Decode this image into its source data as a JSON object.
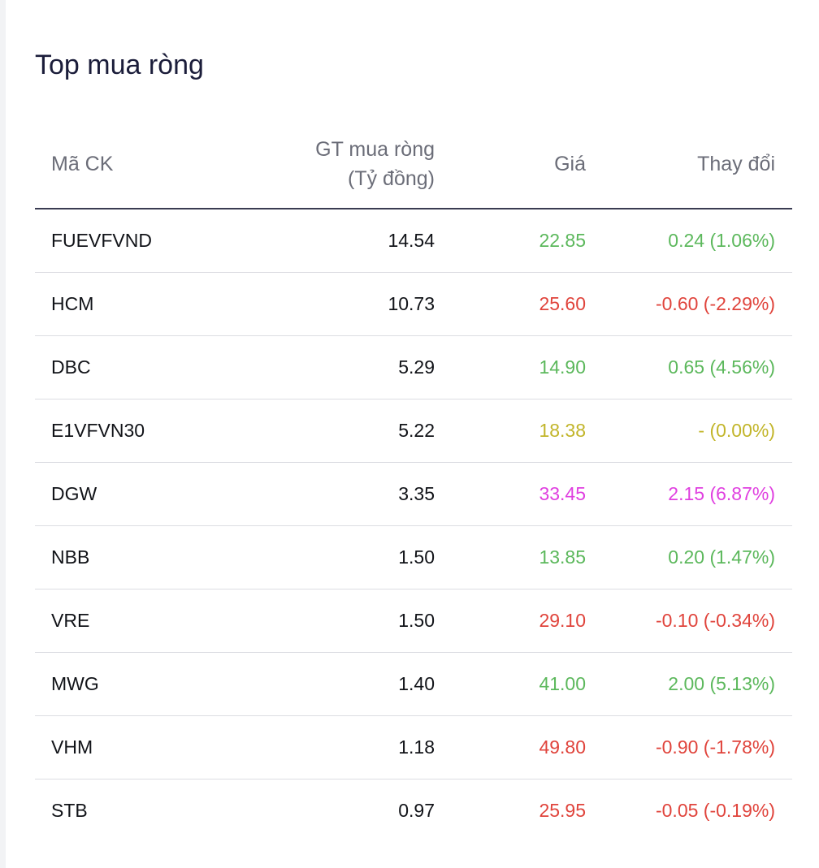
{
  "title": "Top mua ròng",
  "headers": {
    "symbol": "Mã CK",
    "net_value_line1": "GT mua ròng",
    "net_value_line2": "(Tỷ đồng)",
    "price": "Giá",
    "change": "Thay đổi"
  },
  "colors": {
    "up": "#5cb85c",
    "down": "#e0443c",
    "ref": "#c2b52a",
    "ceiling": "#e040e0"
  },
  "rows": [
    {
      "symbol": "FUEVFVND",
      "net_value": "14.54",
      "price": "22.85",
      "change": "0.24 (1.06%)",
      "status": "up"
    },
    {
      "symbol": "HCM",
      "net_value": "10.73",
      "price": "25.60",
      "change": "-0.60 (-2.29%)",
      "status": "down"
    },
    {
      "symbol": "DBC",
      "net_value": "5.29",
      "price": "14.90",
      "change": "0.65 (4.56%)",
      "status": "up"
    },
    {
      "symbol": "E1VFVN30",
      "net_value": "5.22",
      "price": "18.38",
      "change": "- (0.00%)",
      "status": "ref"
    },
    {
      "symbol": "DGW",
      "net_value": "3.35",
      "price": "33.45",
      "change": "2.15 (6.87%)",
      "status": "ceiling"
    },
    {
      "symbol": "NBB",
      "net_value": "1.50",
      "price": "13.85",
      "change": "0.20 (1.47%)",
      "status": "up"
    },
    {
      "symbol": "VRE",
      "net_value": "1.50",
      "price": "29.10",
      "change": "-0.10 (-0.34%)",
      "status": "down"
    },
    {
      "symbol": "MWG",
      "net_value": "1.40",
      "price": "41.00",
      "change": "2.00 (5.13%)",
      "status": "up"
    },
    {
      "symbol": "VHM",
      "net_value": "1.18",
      "price": "49.80",
      "change": "-0.90 (-1.78%)",
      "status": "down"
    },
    {
      "symbol": "STB",
      "net_value": "0.97",
      "price": "25.95",
      "change": "-0.05 (-0.19%)",
      "status": "down"
    }
  ]
}
